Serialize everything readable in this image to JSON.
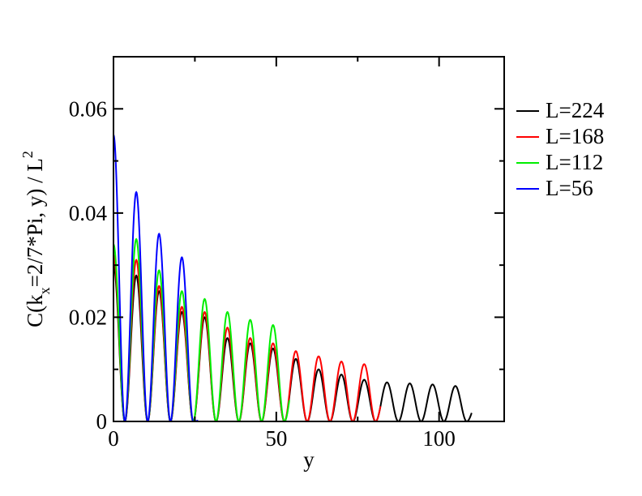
{
  "chart_data": {
    "type": "line",
    "title": "",
    "xlabel": "y",
    "ylabel": {
      "prefix": "C(k",
      "sub": "x",
      "middle": "=2/7*Pi, y) / L",
      "sup": "2"
    },
    "xlim": [
      0,
      120
    ],
    "ylim": [
      0,
      0.07
    ],
    "x_ticks": [
      {
        "value": 0,
        "label": "0"
      },
      {
        "value": 50,
        "label": "50"
      },
      {
        "value": 100,
        "label": "100"
      }
    ],
    "y_ticks": [
      {
        "value": 0,
        "label": "0"
      },
      {
        "value": 0.02,
        "label": "0.02"
      },
      {
        "value": 0.04,
        "label": "0.04"
      },
      {
        "value": 0.06,
        "label": "0.06"
      }
    ],
    "grid": false,
    "legend_position": "right",
    "period": 7,
    "series": [
      {
        "name": "L=224",
        "color": "#000000",
        "x_max": 110,
        "peaks": [
          0.03,
          0.028,
          0.025,
          0.021,
          0.02,
          0.016,
          0.015,
          0.014,
          0.012,
          0.01,
          0.009,
          0.008,
          0.0075,
          0.0073,
          0.0071,
          0.0068,
          0.0042
        ]
      },
      {
        "name": "L=168",
        "color": "#ff0000",
        "x_max": 82,
        "peaks": [
          0.032,
          0.031,
          0.026,
          0.022,
          0.021,
          0.018,
          0.016,
          0.015,
          0.0135,
          0.0125,
          0.0115,
          0.011,
          0.0075
        ]
      },
      {
        "name": "L=112",
        "color": "#00ee00",
        "x_max": 54,
        "peaks": [
          0.034,
          0.035,
          0.029,
          0.025,
          0.0235,
          0.021,
          0.0195,
          0.0185,
          0.0105
        ]
      },
      {
        "name": "L=56",
        "color": "#0000ff",
        "x_max": 26,
        "peaks": [
          0.055,
          0.044,
          0.036,
          0.0315,
          0.0005
        ]
      }
    ]
  }
}
